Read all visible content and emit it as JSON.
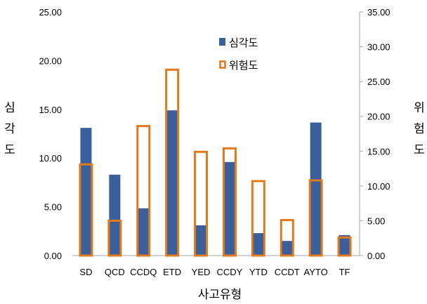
{
  "chart_data": {
    "type": "bar",
    "categories": [
      "SD",
      "QCD",
      "CCDQ",
      "ETD",
      "YED",
      "CCDY",
      "YTD",
      "CCDT",
      "AYTO",
      "TF"
    ],
    "series": [
      {
        "name": "심각도",
        "axis": "left",
        "style": "filled",
        "color": "#3a5f9b",
        "values": [
          13.1,
          8.3,
          4.85,
          14.9,
          3.1,
          9.6,
          2.3,
          1.5,
          13.65,
          2.1
        ]
      },
      {
        "name": "위험도",
        "axis": "right",
        "style": "outline",
        "color": "#e07a1e",
        "values": [
          13.1,
          5.0,
          18.6,
          26.7,
          14.9,
          15.4,
          10.7,
          5.1,
          10.8,
          2.6
        ]
      }
    ],
    "xlabel": "사고유형",
    "ylabel_left": "심각도",
    "ylabel_right": "위험도",
    "ylim_left": [
      0,
      25
    ],
    "ylim_right": [
      0,
      35
    ],
    "left_ticks": [
      "0.00",
      "5.00",
      "10.00",
      "15.00",
      "20.00",
      "25.00"
    ],
    "right_ticks": [
      "0.00",
      "5.00",
      "10.00",
      "15.00",
      "20.00",
      "25.00",
      "30.00",
      "35.00"
    ],
    "legend": [
      "심각도",
      "위험도"
    ],
    "legend_position": "top-center",
    "grid": false
  }
}
